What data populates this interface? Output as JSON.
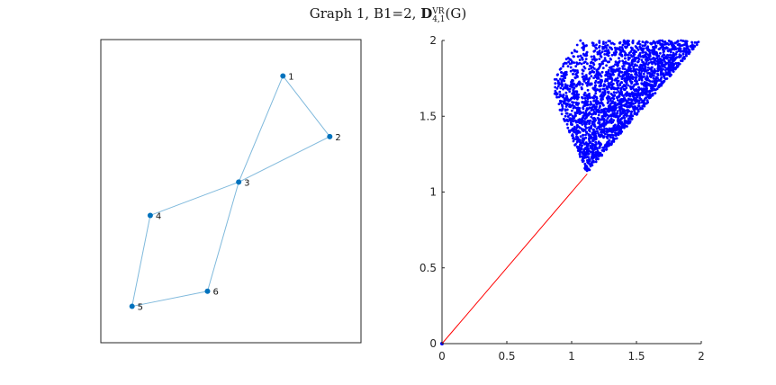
{
  "title": {
    "prefix": "Graph 1, B1=2, ",
    "bold": "D",
    "sup": "VR",
    "sub": "4,1",
    "suffix": "(G)"
  },
  "colors": {
    "graph_node": "#0072BD",
    "graph_edge": "#7fb9dc",
    "scatter": "#0000FF",
    "diagonal": "#FF0000",
    "axis": "#262626"
  },
  "chart_data": [
    {
      "type": "graph",
      "title": "",
      "nodes": [
        {
          "id": "1",
          "x": 0.7,
          "y": 0.88
        },
        {
          "id": "2",
          "x": 0.88,
          "y": 0.68
        },
        {
          "id": "3",
          "x": 0.53,
          "y": 0.53
        },
        {
          "id": "4",
          "x": 0.19,
          "y": 0.42
        },
        {
          "id": "5",
          "x": 0.12,
          "y": 0.12
        },
        {
          "id": "6",
          "x": 0.41,
          "y": 0.17
        }
      ],
      "edges": [
        [
          "1",
          "2"
        ],
        [
          "1",
          "3"
        ],
        [
          "2",
          "3"
        ],
        [
          "3",
          "4"
        ],
        [
          "3",
          "6"
        ],
        [
          "4",
          "5"
        ],
        [
          "5",
          "6"
        ]
      ],
      "axes_visible": false,
      "box": true
    },
    {
      "type": "scatter",
      "title": "",
      "xlabel": "",
      "ylabel": "",
      "xlim": [
        0,
        2
      ],
      "ylim": [
        0,
        2
      ],
      "xticks": [
        "0",
        "0.5",
        "1",
        "1.5",
        "2"
      ],
      "yticks": [
        "0",
        "0.5",
        "1",
        "1.5",
        "2"
      ],
      "grid": false,
      "marker": "dot",
      "diagonal": {
        "from": [
          0,
          0
        ],
        "to": [
          1.12,
          1.12
        ]
      },
      "point_region": {
        "description": "dense cloud above the diagonal y>x",
        "x_range": [
          0.87,
          1.98
        ],
        "y_range": [
          1.12,
          2.0
        ],
        "left_lobe_lower_left": [
          0.87,
          1.62
        ],
        "main_lobe_start_x": 1.12,
        "count": 3000
      },
      "origin_point": [
        0,
        0
      ]
    }
  ]
}
